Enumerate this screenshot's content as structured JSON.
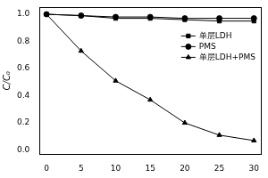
{
  "chart_data": {
    "type": "line",
    "y_label": "C/C₀",
    "x": [
      0,
      5,
      10,
      15,
      20,
      25,
      30
    ],
    "xlim": [
      -1,
      31
    ],
    "xticks": [
      0,
      5,
      10,
      15,
      20,
      25,
      30
    ],
    "ylim": [
      -0.03,
      1.05
    ],
    "yticks": [
      {
        "value": 0,
        "label": "0.0"
      },
      0.2,
      0.4,
      0.6,
      0.8,
      {
        "value": 1,
        "label": "1.0"
      }
    ],
    "grid": false,
    "legend": "upper right",
    "series": [
      {
        "name": "单层LDH",
        "color": "#000000",
        "marker": "square",
        "line_style": "solid",
        "values": [
          1.0,
          0.99,
          0.97,
          0.97,
          0.96,
          0.95,
          0.95
        ]
      },
      {
        "name": "PMS",
        "color": "#000000",
        "marker": "circle",
        "line_style": "solid",
        "values": [
          1.0,
          0.99,
          0.98,
          0.98,
          0.97,
          0.97,
          0.97
        ]
      },
      {
        "name": "单层LDH+PMS",
        "color": "#000000",
        "marker": "triangle",
        "line_style": "solid",
        "values": [
          1.0,
          0.73,
          0.51,
          0.37,
          0.2,
          0.11,
          0.07
        ]
      }
    ]
  }
}
